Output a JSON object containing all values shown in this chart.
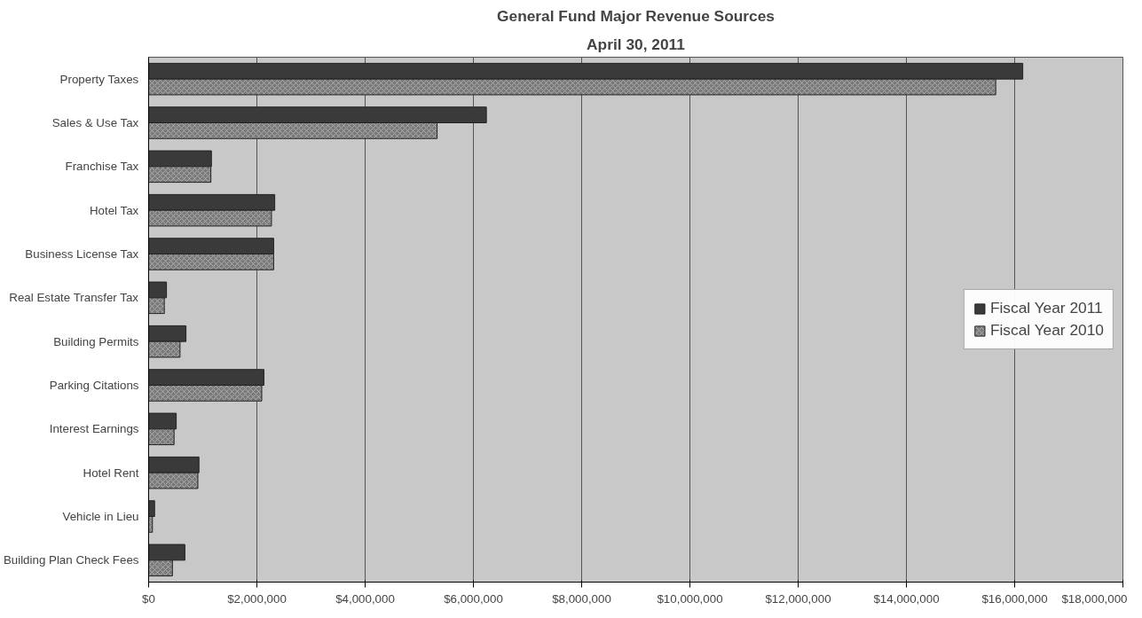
{
  "chart_data": {
    "type": "bar",
    "orientation": "horizontal",
    "title": "General Fund Major Revenue Sources",
    "subtitle": "April 30, 2011",
    "categories": [
      "Property Taxes",
      "Sales & Use Tax",
      "Franchise Tax",
      "Hotel Tax",
      "Business License Tax",
      "Real Estate Transfer Tax",
      "Building Permits",
      "Parking Citations",
      "Interest Earnings",
      "Hotel Rent",
      "Vehicle in Lieu",
      "Building Plan Check Fees"
    ],
    "series": [
      {
        "name": "Fiscal Year 2011",
        "color": "#3a3a3a",
        "values": [
          16150000,
          6240000,
          1160000,
          2330000,
          2310000,
          330000,
          690000,
          2130000,
          510000,
          930000,
          110000,
          670000
        ]
      },
      {
        "name": "Fiscal Year 2010",
        "color": "#7a7a7a",
        "values": [
          15650000,
          5330000,
          1150000,
          2270000,
          2310000,
          290000,
          580000,
          2090000,
          470000,
          910000,
          70000,
          440000
        ]
      }
    ],
    "xlim": [
      0,
      18000000
    ],
    "xticks": [
      {
        "value": 0,
        "label": "$0"
      },
      {
        "value": 2000000,
        "label": "$2,000,000"
      },
      {
        "value": 4000000,
        "label": "$4,000,000"
      },
      {
        "value": 6000000,
        "label": "$6,000,000"
      },
      {
        "value": 8000000,
        "label": "$8,000,000"
      },
      {
        "value": 10000000,
        "label": "$10,000,000"
      },
      {
        "value": 12000000,
        "label": "$12,000,000"
      },
      {
        "value": 14000000,
        "label": "$14,000,000"
      },
      {
        "value": 16000000,
        "label": "$16,000,000"
      },
      {
        "value": 18000000,
        "label": "$18,000,000"
      }
    ],
    "grid": "x",
    "legend": "right"
  }
}
